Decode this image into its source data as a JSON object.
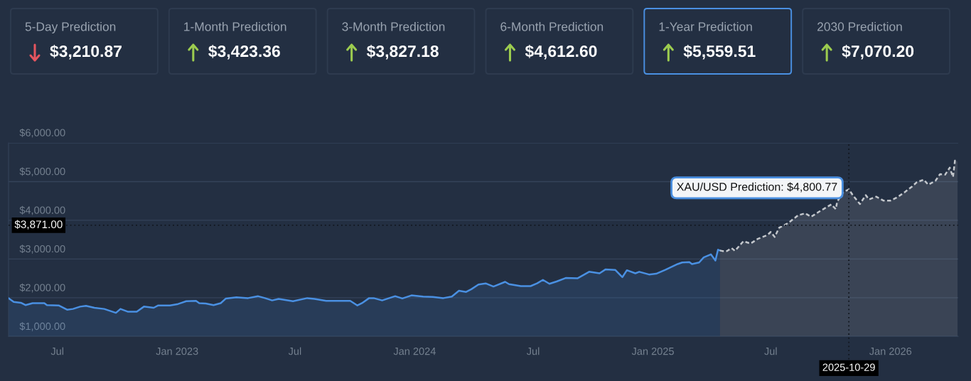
{
  "chart_data": [
    {
      "type": "other",
      "categories": [
        "5-Day Prediction",
        "1-Month Prediction",
        "3-Month Prediction",
        "6-Month Prediction",
        "1-Year Prediction",
        "2030 Prediction"
      ],
      "values": [
        3210.87,
        3423.36,
        3827.18,
        4612.6,
        5559.51,
        7070.2
      ],
      "value_labels": [
        "$3,210.87",
        "$3,423.36",
        "$3,827.18",
        "$4,612.60",
        "$5,559.51",
        "$7,070.20"
      ],
      "colors": [
        "#e5555f",
        "#9ccc4f",
        "#9ccc4f",
        "#9ccc4f",
        "#9ccc4f",
        "#9ccc4f"
      ]
    },
    {
      "type": "area",
      "series": [
        {
          "color": "#4a90e2",
          "line_style": "solid",
          "x": [
            "2022-04-17",
            "2022-04-25",
            "2022-05-06",
            "2022-05-13",
            "2022-05-24",
            "2022-06-11",
            "2022-06-15",
            "2022-07-03",
            "2022-07-16",
            "2022-07-25",
            "2022-08-05",
            "2022-08-14",
            "2022-08-27",
            "2022-09-11",
            "2022-09-29",
            "2022-10-06",
            "2022-10-17",
            "2022-10-31",
            "2022-11-11",
            "2022-11-26",
            "2022-12-03",
            "2022-12-21",
            "2023-01-01",
            "2023-01-15",
            "2023-01-30",
            "2023-02-04",
            "2023-02-14",
            "2023-02-26",
            "2023-03-09",
            "2023-03-17",
            "2023-04-02",
            "2023-04-20",
            "2023-05-05",
            "2023-05-16",
            "2023-05-27",
            "2023-06-06",
            "2023-06-28",
            "2023-07-20",
            "2023-07-31",
            "2023-08-18",
            "2023-09-02",
            "2023-09-24",
            "2023-10-05",
            "2023-10-12",
            "2023-10-23",
            "2023-10-30",
            "2023-11-12",
            "2023-12-02",
            "2023-12-13",
            "2023-12-27",
            "2024-01-14",
            "2024-01-29",
            "2024-02-14",
            "2024-02-27",
            "2024-03-09",
            "2024-03-20",
            "2024-03-28",
            "2024-04-08",
            "2024-04-19",
            "2024-05-01",
            "2024-05-19",
            "2024-05-25",
            "2024-06-12",
            "2024-06-27",
            "2024-07-07",
            "2024-07-16",
            "2024-07-26",
            "2024-08-06",
            "2024-08-20",
            "2024-09-07",
            "2024-09-25",
            "2024-10-11",
            "2024-10-20",
            "2024-11-04",
            "2024-11-15",
            "2024-11-22",
            "2024-12-05",
            "2024-12-11",
            "2024-12-26",
            "2025-01-06",
            "2025-01-20",
            "2025-02-08",
            "2025-02-15",
            "2025-02-26",
            "2025-03-02",
            "2025-03-13",
            "2025-03-20",
            "2025-03-31",
            "2025-04-07",
            "2025-04-11",
            "2025-04-14"
          ],
          "values": [
            1990,
            1890,
            1870,
            1810,
            1860,
            1860,
            1810,
            1800,
            1690,
            1710,
            1770,
            1790,
            1740,
            1710,
            1610,
            1710,
            1640,
            1640,
            1770,
            1740,
            1800,
            1800,
            1830,
            1910,
            1920,
            1860,
            1850,
            1810,
            1860,
            1980,
            2010,
            1990,
            2040,
            1990,
            1930,
            1970,
            1910,
            1990,
            1970,
            1920,
            1920,
            1920,
            1800,
            1860,
            1990,
            1990,
            1930,
            2040,
            1980,
            2060,
            2030,
            2020,
            1990,
            2030,
            2180,
            2150,
            2220,
            2340,
            2370,
            2290,
            2410,
            2350,
            2300,
            2300,
            2370,
            2460,
            2360,
            2420,
            2510,
            2500,
            2670,
            2630,
            2730,
            2720,
            2530,
            2710,
            2630,
            2670,
            2600,
            2620,
            2720,
            2870,
            2910,
            2920,
            2870,
            2910,
            3040,
            3120,
            2960,
            3240,
            3220
          ]
        },
        {
          "color": "#c3c7cc",
          "line_style": "dashed",
          "x": [
            "2025-04-14",
            "2025-04-23",
            "2025-05-02",
            "2025-05-07",
            "2025-05-20",
            "2025-05-31",
            "2025-06-11",
            "2025-06-26",
            "2025-07-01",
            "2025-07-07",
            "2025-07-14",
            "2025-07-28",
            "2025-08-12",
            "2025-08-23",
            "2025-09-01",
            "2025-09-12",
            "2025-09-21",
            "2025-10-02",
            "2025-10-09",
            "2025-10-11",
            "2025-10-20",
            "2025-10-29",
            "2025-11-04",
            "2025-11-15",
            "2025-11-24",
            "2025-11-29",
            "2025-12-10",
            "2025-12-21",
            "2026-01-01",
            "2026-01-12",
            "2026-01-23",
            "2026-02-03",
            "2026-02-10",
            "2026-02-21",
            "2026-02-28",
            "2026-03-11",
            "2026-03-18",
            "2026-03-26",
            "2026-04-02",
            "2026-04-07",
            "2026-04-10",
            "2026-04-14"
          ],
          "values": [
            3220,
            3190,
            3280,
            3210,
            3460,
            3400,
            3520,
            3620,
            3700,
            3570,
            3810,
            3930,
            4130,
            4180,
            4090,
            4210,
            4300,
            4410,
            4290,
            4480,
            4720,
            4800.77,
            4650,
            4420,
            4650,
            4540,
            4610,
            4510,
            4510,
            4600,
            4730,
            4870,
            4980,
            5050,
            4920,
            5020,
            5190,
            5180,
            5360,
            5120,
            5540,
            5520
          ]
        }
      ],
      "xlim": [
        "2022-04-17",
        "2026-04-15"
      ],
      "xticks": [
        {
          "value": "2022-07-01",
          "label": "Jul"
        },
        {
          "value": "2023-01-01",
          "label": "Jan 2023"
        },
        {
          "value": "2023-07-01",
          "label": "Jul"
        },
        {
          "value": "2024-01-01",
          "label": "Jan 2024"
        },
        {
          "value": "2024-07-01",
          "label": "Jul"
        },
        {
          "value": "2025-01-01",
          "label": "Jan 2025"
        },
        {
          "value": "2025-07-01",
          "label": "Jul"
        },
        {
          "value": "2026-01-01",
          "label": "Jan 2026"
        }
      ],
      "ylim": [
        1000,
        6000
      ],
      "yticks": [
        {
          "value": 1000,
          "label": "$1,000.00"
        },
        {
          "value": 2000,
          "label": "$2,000.00"
        },
        {
          "value": 3000,
          "label": "$3,000.00"
        },
        {
          "value": 4000,
          "label": "$4,000.00"
        },
        {
          "value": 5000,
          "label": "$5,000.00"
        },
        {
          "value": 6000,
          "label": "$6,000.00"
        }
      ],
      "grid": "y",
      "ref_lines": [
        {
          "axis": "y",
          "value": 3871,
          "label": "$3,871.00",
          "color": "#12171f",
          "line_style": "dotted"
        },
        {
          "axis": "x",
          "value": "2025-10-29",
          "label": "2025-10-29",
          "color": "#12171f",
          "line_style": "dotted"
        }
      ],
      "annotations": [
        {
          "text": "XAU/USD Prediction: $4,800.77",
          "x": "2025-10-29",
          "y": 4800.77
        }
      ]
    }
  ]
}
